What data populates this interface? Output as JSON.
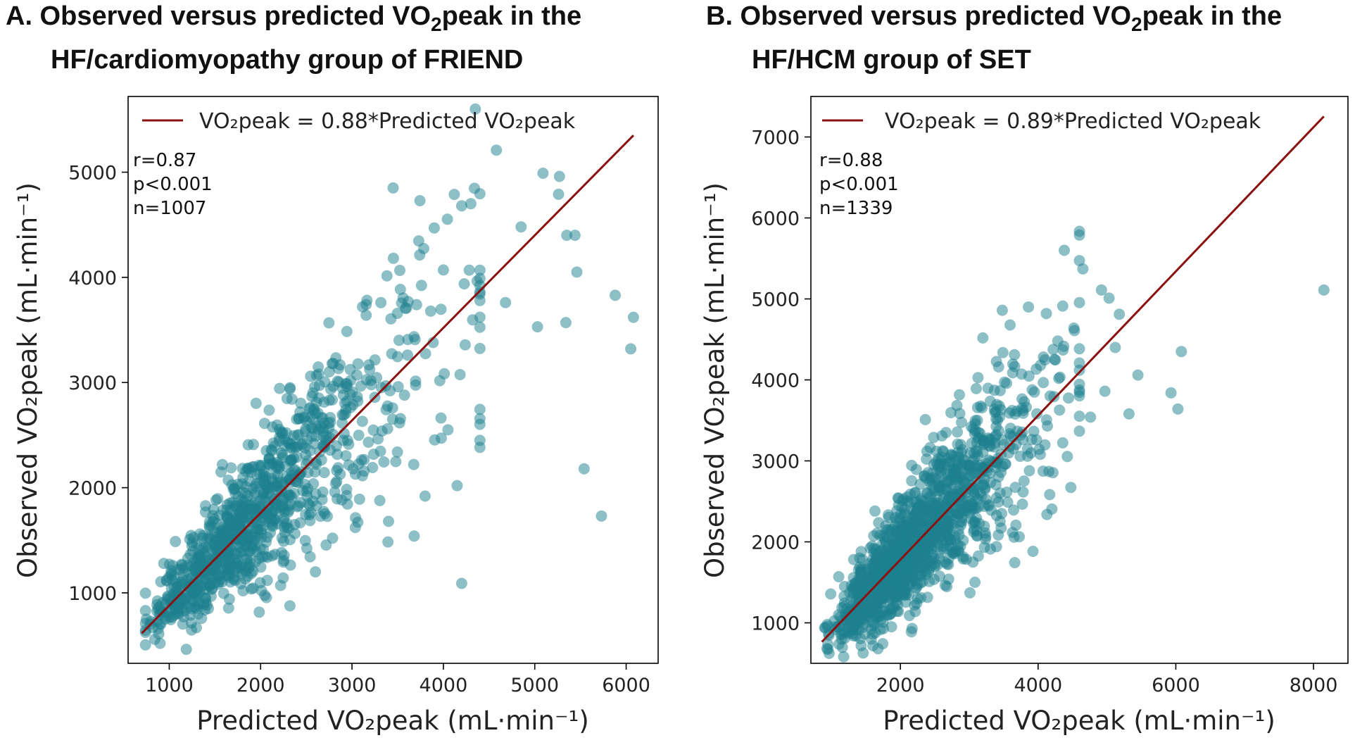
{
  "chart_data": [
    {
      "type": "scatter",
      "panel": "A",
      "title_line1_prefix": "A. Observed versus predicted VO",
      "title_line1_sub": "2",
      "title_line1_suffix": "peak in the",
      "title_line2": "HF/cardiomyopathy group of FRIEND",
      "xlabel": "Predicted VO₂peak (mL·min⁻¹)",
      "ylabel": "Observed VO₂peak (mL·min⁻¹)",
      "xlim": [
        550,
        6350
      ],
      "ylim": [
        330,
        5720
      ],
      "xticks": [
        1000,
        2000,
        3000,
        4000,
        5000,
        6000
      ],
      "yticks": [
        1000,
        2000,
        3000,
        4000,
        5000
      ],
      "xtick_labels": [
        "1000",
        "2000",
        "3000",
        "4000",
        "5000",
        "6000"
      ],
      "ytick_labels": [
        "1000",
        "2000",
        "3000",
        "4000",
        "5000"
      ],
      "legend_label": "VO₂peak =  0.88*Predicted VO₂peak",
      "fit_slope": 0.88,
      "fit_x_range": [
        700,
        6080
      ],
      "stats": [
        "r=0.87",
        "p<0.001",
        "n=1007"
      ],
      "point_color": "#1b7f8e",
      "line_color": "#8b1010",
      "outliers": [
        [
          4350,
          5600
        ],
        [
          4580,
          5210
        ],
        [
          5090,
          4990
        ],
        [
          5270,
          4960
        ],
        [
          5260,
          4790
        ],
        [
          3450,
          4850
        ],
        [
          4850,
          4480
        ],
        [
          3900,
          4470
        ],
        [
          4200,
          4680
        ],
        [
          4300,
          4700
        ],
        [
          5350,
          4400
        ],
        [
          5440,
          4400
        ],
        [
          5460,
          4050
        ],
        [
          4680,
          3760
        ],
        [
          5030,
          3530
        ],
        [
          5340,
          3570
        ],
        [
          5880,
          3830
        ],
        [
          6080,
          3620
        ],
        [
          6050,
          3320
        ],
        [
          5540,
          2180
        ],
        [
          5730,
          1730
        ],
        [
          4150,
          2020
        ],
        [
          4200,
          1090
        ],
        [
          3680,
          1540
        ],
        [
          3800,
          1920
        ],
        [
          4050,
          2550
        ],
        [
          3400,
          1680
        ],
        [
          900,
          520
        ],
        [
          820,
          670
        ],
        [
          880,
          660
        ],
        [
          2600,
          1200
        ]
      ]
    },
    {
      "type": "scatter",
      "panel": "B",
      "title_line1_prefix": "B. Observed versus predicted VO",
      "title_line1_sub": "2",
      "title_line1_suffix": "peak in the",
      "title_line2": "HF/HCM group of SET",
      "xlabel": "Predicted VO₂peak (mL·min⁻¹)",
      "ylabel": "Observed VO₂peak (mL·min⁻¹)",
      "xlim": [
        700,
        8500
      ],
      "ylim": [
        500,
        7500
      ],
      "xticks": [
        2000,
        4000,
        6000,
        8000
      ],
      "yticks": [
        1000,
        2000,
        3000,
        4000,
        5000,
        6000,
        7000
      ],
      "xtick_labels": [
        "2000",
        "4000",
        "6000",
        "8000"
      ],
      "ytick_labels": [
        "1000",
        "2000",
        "3000",
        "4000",
        "5000",
        "6000",
        "7000"
      ],
      "legend_label": "VO₂peak =  0.89*Predicted VO₂peak",
      "fit_slope": 0.89,
      "fit_x_range": [
        860,
        8150
      ],
      "stats": [
        "r=0.88",
        "p<0.001",
        "n=1339"
      ],
      "point_color": "#1b7f8e",
      "line_color": "#8b1010",
      "outliers": [
        [
          8150,
          5110
        ],
        [
          4380,
          5600
        ],
        [
          4650,
          5370
        ],
        [
          4920,
          5110
        ],
        [
          5030,
          5010
        ],
        [
          3860,
          4900
        ],
        [
          4120,
          4820
        ],
        [
          3480,
          4860
        ],
        [
          5180,
          4810
        ],
        [
          6080,
          4350
        ],
        [
          5120,
          4400
        ],
        [
          5450,
          4060
        ],
        [
          5930,
          3840
        ],
        [
          6030,
          3640
        ],
        [
          5320,
          3580
        ],
        [
          4970,
          3860
        ],
        [
          4760,
          3540
        ],
        [
          1150,
          860
        ],
        [
          900,
          940
        ],
        [
          1300,
          1010
        ]
      ]
    }
  ]
}
